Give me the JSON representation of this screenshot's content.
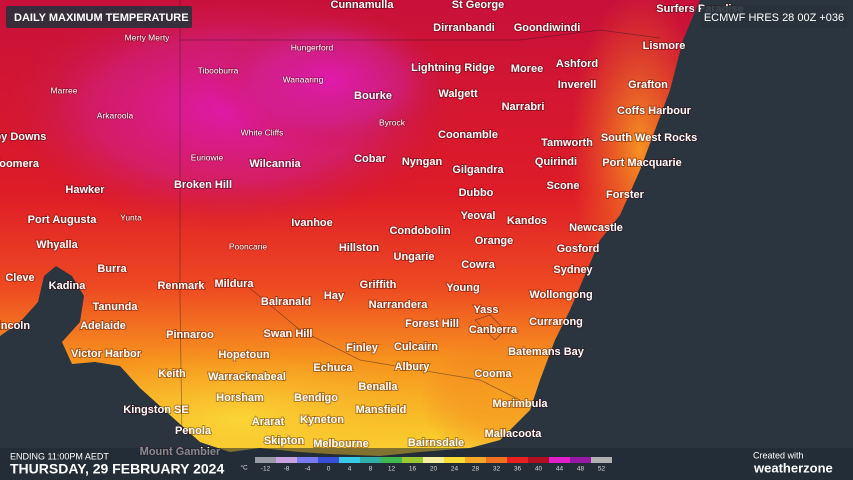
{
  "header": {
    "title": "DAILY MAXIMUM TEMPERATURE",
    "model": "ECMWF HRES 28 00Z +036"
  },
  "places": {
    "major": [
      "Cunnamulla",
      "St George",
      "Surfers Paradise",
      "Dirranbandi",
      "Goondiwindi",
      "Lismore",
      "Lightning Ridge",
      "Moree",
      "Ashford",
      "Inverell",
      "Grafton",
      "Bourke",
      "Walgett",
      "Narrabri",
      "Coffs Harbour",
      "Roxby Downs",
      "Coonamble",
      "Tamworth",
      "South West Rocks",
      "Woomera",
      "Cobar",
      "Nyngan",
      "Wilcannia",
      "Gilgandra",
      "Quirindi",
      "Port Macquarie",
      "Broken Hill",
      "Hawker",
      "Dubbo",
      "Scone",
      "Forster",
      "Port Augusta",
      "Yeoval",
      "Kandos",
      "Newcastle",
      "Ivanhoe",
      "Condobolin",
      "Orange",
      "Gosford",
      "Whyalla",
      "Hillston",
      "Ungarie",
      "Cowra",
      "Sydney",
      "Burra",
      "Cleve",
      "Kadina",
      "Renmark",
      "Mildura",
      "Griffith",
      "Hay",
      "Young",
      "Wollongong",
      "Balranald",
      "Narrandera",
      "Yass",
      "Tanunda",
      "Port Lincoln",
      "Adelaide",
      "Pinnaroo",
      "Swan Hill",
      "Forest Hill",
      "Canberra",
      "Currarong",
      "Finley",
      "Culcairn",
      "Batemans Bay",
      "Victor Harbor",
      "Hopetoun",
      "Echuca",
      "Albury",
      "Cooma",
      "Keith",
      "Warracknabeal",
      "Benalla",
      "Horsham",
      "Bendigo",
      "Merimbula",
      "Kingston SE",
      "Mansfield",
      "Ararat",
      "Kyneton",
      "Penola",
      "Mallacoota",
      "Skipton",
      "Melbourne",
      "Bairnsdale",
      "Mount Gambier"
    ],
    "minor": [
      "Merty Merty",
      "Hungerford",
      "Tibooburra",
      "Wanaaring",
      "Marree",
      "Arkaroola",
      "Byrock",
      "White Cliffs",
      "Euriowie",
      "Yunta",
      "Pooncarie"
    ]
  },
  "footer": {
    "period": "ENDING 11:00PM AEDT",
    "date": "THURSDAY, 29 FEBRUARY 2024",
    "credit": "Created with",
    "brand": "weatherzone"
  },
  "legend": {
    "unit": "°C",
    "ticks": [
      -12,
      -8,
      -4,
      0,
      4,
      8,
      12,
      16,
      20,
      24,
      28,
      32,
      36,
      40,
      44,
      48,
      52
    ],
    "colors": [
      "#9a9aa6",
      "#c9a3e0",
      "#7a7af0",
      "#3a4fd8",
      "#38c8e8",
      "#30b0a8",
      "#40b850",
      "#9ac832",
      "#f4f0a0",
      "#f8dc38",
      "#f8a828",
      "#f07020",
      "#e82020",
      "#b01020",
      "#e020c8",
      "#9818a8",
      "#b0b0b0"
    ]
  }
}
